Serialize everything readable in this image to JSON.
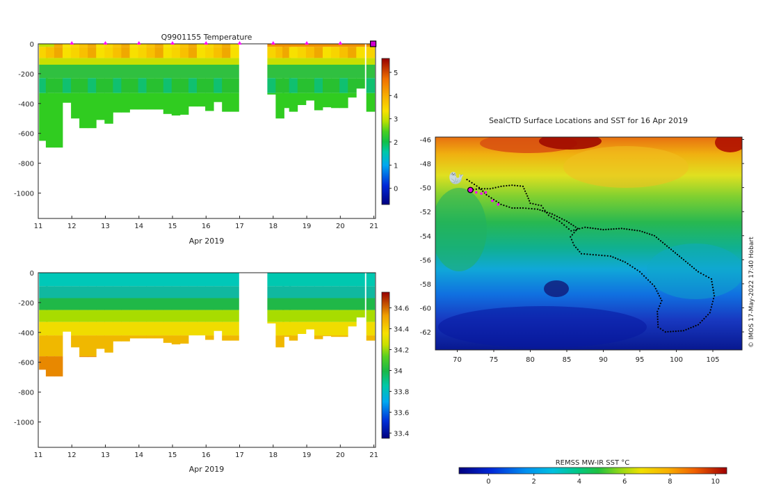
{
  "chart_data": [
    {
      "type": "heatmap",
      "title": "Q9901155  Temperature",
      "variable": "temperature",
      "xlabel": "Apr 2019",
      "x_ticks": [
        "11",
        "12",
        "13",
        "14",
        "15",
        "16",
        "17",
        "18",
        "19",
        "20",
        "21"
      ],
      "x_range": [
        11,
        21.05
      ],
      "y_ticks": [
        "0",
        "-200",
        "-400",
        "-600",
        "-800",
        "-1000"
      ],
      "y_range": [
        -1170,
        0
      ],
      "colorbar": {
        "ticks": [
          "0",
          "1",
          "2",
          "3",
          "4",
          "5"
        ],
        "range": [
          -0.7,
          5.6
        ]
      },
      "surface_markers_day": [
        12,
        13,
        14,
        15,
        16,
        17,
        18,
        19,
        20
      ],
      "last_marker_day": 21,
      "profiles": [
        {
          "t": 11.15,
          "depth": 650
        },
        {
          "t": 11.35,
          "depth": 695
        },
        {
          "t": 11.6,
          "depth": 695
        },
        {
          "t": 11.85,
          "depth": 395
        },
        {
          "t": 12.1,
          "depth": 500
        },
        {
          "t": 12.35,
          "depth": 565
        },
        {
          "t": 12.6,
          "depth": 565
        },
        {
          "t": 12.85,
          "depth": 510
        },
        {
          "t": 13.1,
          "depth": 535
        },
        {
          "t": 13.35,
          "depth": 460
        },
        {
          "t": 13.6,
          "depth": 460
        },
        {
          "t": 13.85,
          "depth": 440
        },
        {
          "t": 14.1,
          "depth": 440
        },
        {
          "t": 14.35,
          "depth": 440
        },
        {
          "t": 14.6,
          "depth": 440
        },
        {
          "t": 14.85,
          "depth": 470
        },
        {
          "t": 15.1,
          "depth": 480
        },
        {
          "t": 15.35,
          "depth": 475
        },
        {
          "t": 15.6,
          "depth": 420
        },
        {
          "t": 15.85,
          "depth": 420
        },
        {
          "t": 16.1,
          "depth": 450
        },
        {
          "t": 16.35,
          "depth": 390
        },
        {
          "t": 16.6,
          "depth": 455
        },
        {
          "t": 16.85,
          "depth": 455
        },
        {
          "t": 17.95,
          "depth": 340
        },
        {
          "t": 18.2,
          "depth": 500
        },
        {
          "t": 18.4,
          "depth": 430
        },
        {
          "t": 18.6,
          "depth": 455
        },
        {
          "t": 18.85,
          "depth": 410
        },
        {
          "t": 19.1,
          "depth": 380
        },
        {
          "t": 19.35,
          "depth": 445
        },
        {
          "t": 19.6,
          "depth": 425
        },
        {
          "t": 19.85,
          "depth": 430
        },
        {
          "t": 20.1,
          "depth": 430
        },
        {
          "t": 20.35,
          "depth": 360
        },
        {
          "t": 20.6,
          "depth": 300
        },
        {
          "t": 20.9,
          "depth": 455
        }
      ]
    },
    {
      "type": "heatmap",
      "title": "",
      "variable": "salinity",
      "xlabel": "Apr 2019",
      "x_ticks": [
        "11",
        "12",
        "13",
        "14",
        "15",
        "16",
        "17",
        "18",
        "19",
        "20",
        "21"
      ],
      "x_range": [
        11,
        21.05
      ],
      "y_ticks": [
        "0",
        "-200",
        "-400",
        "-600",
        "-800",
        "-1000"
      ],
      "y_range": [
        -1170,
        0
      ],
      "colorbar": {
        "ticks": [
          "33.4",
          "33.6",
          "33.8",
          "34",
          "34.2",
          "34.4",
          "34.6"
        ],
        "range": [
          33.35,
          34.75
        ]
      },
      "profiles": "same as temperature profiles"
    },
    {
      "type": "heatmap",
      "title": "SealCTD Surface Locations and SST for 16 Apr 2019",
      "variable": "sea surface temperature",
      "x_ticks": [
        "70",
        "75",
        "80",
        "85",
        "90",
        "95",
        "100",
        "105"
      ],
      "x_range": [
        67,
        109
      ],
      "y_ticks": [
        "-46",
        "-48",
        "-50",
        "-52",
        "-54",
        "-56",
        "-58",
        "-60",
        "-62"
      ],
      "y_range": [
        -63.5,
        -45.8
      ],
      "colorbar_label": "REMSS MW-IR SST °C",
      "colorbar_ticks": [
        "0",
        "2",
        "4",
        "6",
        "8",
        "10"
      ],
      "colorbar_range": [
        -1.3,
        10.5
      ],
      "credit": "© IMOS 17-May-2022 17:40 Hobart",
      "current_position": {
        "lon": 71.8,
        "lat": -50.2
      },
      "recent_positions": [
        [
          72.6,
          -50.4
        ],
        [
          73.3,
          -50.5
        ],
        [
          73.9,
          -50.4
        ],
        [
          74.8,
          -51.1
        ],
        [
          75.6,
          -51.4
        ]
      ],
      "track": [
        [
          71.8,
          -50.2
        ],
        [
          73.0,
          -50.1
        ],
        [
          74.5,
          -50.1
        ],
        [
          76.0,
          -49.9
        ],
        [
          77.5,
          -49.8
        ],
        [
          79.0,
          -49.9
        ],
        [
          79.6,
          -50.7
        ],
        [
          80.0,
          -51.3
        ],
        [
          81.5,
          -51.5
        ],
        [
          82.5,
          -52.3
        ],
        [
          84.0,
          -52.8
        ],
        [
          85.6,
          -53.6
        ],
        [
          87.5,
          -53.3
        ],
        [
          90.0,
          -53.5
        ],
        [
          92.5,
          -53.4
        ],
        [
          95.0,
          -53.6
        ],
        [
          97.0,
          -54.0
        ],
        [
          99.0,
          -55.0
        ],
        [
          101.0,
          -56.0
        ],
        [
          103.0,
          -57.0
        ],
        [
          104.8,
          -57.6
        ],
        [
          105.2,
          -59.0
        ],
        [
          104.6,
          -60.4
        ],
        [
          103.0,
          -61.4
        ],
        [
          101.0,
          -61.9
        ],
        [
          98.5,
          -62.0
        ],
        [
          97.5,
          -61.6
        ],
        [
          97.4,
          -60.3
        ],
        [
          98.0,
          -59.4
        ],
        [
          97.0,
          -58.2
        ],
        [
          95.0,
          -57.0
        ],
        [
          93.0,
          -56.2
        ],
        [
          91.0,
          -55.7
        ],
        [
          89.0,
          -55.6
        ],
        [
          87.0,
          -55.5
        ],
        [
          86.0,
          -54.8
        ],
        [
          85.5,
          -54.1
        ],
        [
          86.5,
          -53.4
        ],
        [
          85.0,
          -52.8
        ],
        [
          83.0,
          -52.2
        ],
        [
          81.0,
          -51.8
        ],
        [
          79.0,
          -51.7
        ],
        [
          77.5,
          -51.7
        ],
        [
          76.0,
          -51.4
        ],
        [
          74.0,
          -50.6
        ],
        [
          73.0,
          -50.0
        ],
        [
          72.0,
          -49.6
        ],
        [
          71.0,
          -49.2
        ]
      ]
    }
  ]
}
